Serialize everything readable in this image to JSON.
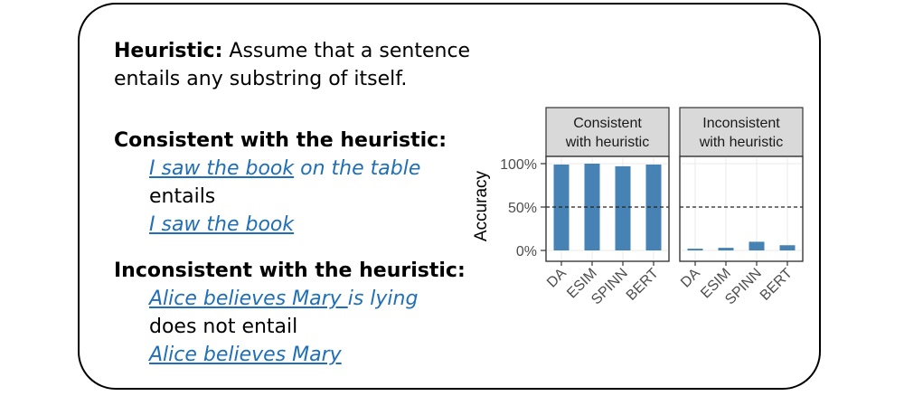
{
  "heuristic": {
    "label": "Heuristic:",
    "line1": "Assume that a sentence",
    "line2": "entails any substring of itself."
  },
  "consistent": {
    "heading": "Consistent with the heuristic:",
    "premise_underlined": "I saw the book",
    "premise_rest": " on the table",
    "relation": "entails",
    "hypothesis": "I saw the book"
  },
  "inconsistent": {
    "heading": "Inconsistent with the heuristic:",
    "premise_underlined": "Alice believes Mary ",
    "premise_rest": "is lying",
    "relation": "does not entail",
    "hypothesis": "Alice believes Mary"
  },
  "chart_data": {
    "type": "bar",
    "ylabel": "Accuracy",
    "ylim": [
      0,
      1
    ],
    "yticks": [
      "0%",
      "50%",
      "100%"
    ],
    "categories": [
      "DA",
      "ESIM",
      "SPINN",
      "BERT"
    ],
    "reference_line": 0.5,
    "bar_color": "#4682b4",
    "facets": [
      {
        "title_line1": "Consistent",
        "title_line2": "with heuristic",
        "values": [
          0.99,
          1.0,
          0.97,
          0.99
        ]
      },
      {
        "title_line1": "Inconsistent",
        "title_line2": "with heuristic",
        "values": [
          0.02,
          0.03,
          0.1,
          0.06
        ]
      }
    ]
  }
}
